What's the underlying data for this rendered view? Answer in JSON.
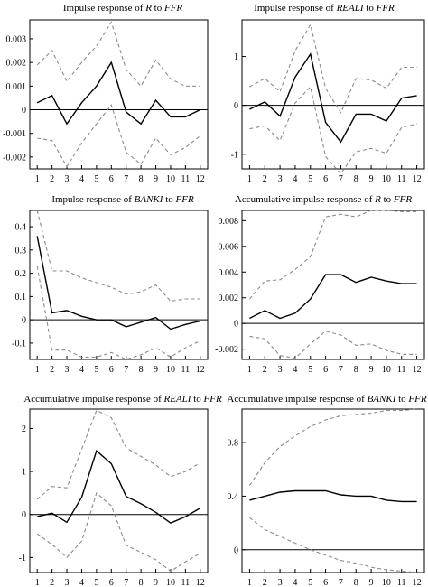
{
  "chart_data": [
    {
      "type": "line",
      "title": {
        "prefix": "Impulse response of ",
        "var": "R",
        "suffix": " to ",
        "target": "FFR"
      },
      "x": [
        1,
        2,
        3,
        4,
        5,
        6,
        7,
        8,
        9,
        10,
        11,
        12
      ],
      "ylim": [
        -0.0025,
        0.0038
      ],
      "yticks": [
        "0.003",
        "0.002",
        "0.001",
        "0",
        "-0.001",
        "-0.002"
      ],
      "ytick_values": [
        0.003,
        0.002,
        0.001,
        0,
        -0.001,
        -0.002
      ],
      "series": [
        {
          "role": "response",
          "values": [
            0.0003,
            0.0006,
            -0.0006,
            0.0003,
            0.001,
            0.002,
            -0.0001,
            -0.0006,
            0.0004,
            -0.0003,
            -0.0003,
            0.0
          ]
        },
        {
          "role": "upper",
          "values": [
            0.0019,
            0.0025,
            0.0012,
            0.002,
            0.0027,
            0.0037,
            0.0017,
            0.001,
            0.0021,
            0.0013,
            0.001,
            0.001
          ]
        },
        {
          "role": "lower",
          "values": [
            -0.0012,
            -0.0013,
            -0.0024,
            -0.0014,
            -0.0006,
            0.0002,
            -0.0018,
            -0.0023,
            -0.0012,
            -0.0019,
            -0.0016,
            -0.0011
          ]
        }
      ]
    },
    {
      "type": "line",
      "title": {
        "prefix": "Impulse response of ",
        "var": "REALI",
        "suffix": " to ",
        "target": "FFR"
      },
      "x": [
        1,
        2,
        3,
        4,
        5,
        6,
        7,
        8,
        9,
        10,
        11,
        12
      ],
      "ylim": [
        -1.3,
        1.75
      ],
      "yticks": [
        "1",
        "0",
        "-1"
      ],
      "ytick_values": [
        1,
        0,
        -1
      ],
      "series": [
        {
          "role": "response",
          "values": [
            -0.08,
            0.07,
            -0.22,
            0.58,
            1.05,
            -0.35,
            -0.75,
            -0.18,
            -0.18,
            -0.32,
            0.15,
            0.2
          ]
        },
        {
          "role": "upper",
          "values": [
            0.38,
            0.55,
            0.28,
            1.12,
            1.65,
            0.35,
            -0.15,
            0.55,
            0.52,
            0.35,
            0.78,
            0.78
          ]
        },
        {
          "role": "lower",
          "values": [
            -0.48,
            -0.42,
            -0.72,
            0.05,
            0.38,
            -1.05,
            -1.4,
            -0.95,
            -0.88,
            -0.98,
            -0.45,
            -0.38
          ]
        }
      ]
    },
    {
      "type": "line",
      "title": {
        "prefix": "Impulse response of ",
        "var": "BANKI",
        "suffix": " to ",
        "target": "FFR"
      },
      "x": [
        1,
        2,
        3,
        4,
        5,
        6,
        7,
        8,
        9,
        10,
        11,
        12
      ],
      "ylim": [
        -0.17,
        0.47
      ],
      "yticks": [
        "0.4",
        "0.3",
        "0.2",
        "0.1",
        "0",
        "-0.1"
      ],
      "ytick_values": [
        0.4,
        0.3,
        0.2,
        0.1,
        0,
        -0.1
      ],
      "series": [
        {
          "role": "response",
          "values": [
            0.36,
            0.03,
            0.04,
            0.015,
            0.0,
            0.0,
            -0.03,
            -0.01,
            0.01,
            -0.04,
            -0.02,
            -0.005
          ]
        },
        {
          "role": "upper",
          "values": [
            0.47,
            0.21,
            0.21,
            0.18,
            0.16,
            0.14,
            0.11,
            0.12,
            0.15,
            0.08,
            0.09,
            0.09
          ]
        },
        {
          "role": "lower",
          "values": [
            0.23,
            -0.13,
            -0.13,
            -0.16,
            -0.16,
            -0.14,
            -0.17,
            -0.15,
            -0.12,
            -0.16,
            -0.12,
            -0.09
          ]
        }
      ]
    },
    {
      "type": "line",
      "title": {
        "prefix": "Accumulative impulse response of ",
        "var": "R",
        "suffix": " to ",
        "target": "FFR"
      },
      "x": [
        1,
        2,
        3,
        4,
        5,
        6,
        7,
        8,
        9,
        10,
        11,
        12
      ],
      "ylim": [
        -0.0028,
        0.0088
      ],
      "yticks": [
        "0.008",
        "0.006",
        "0.004",
        "0.002",
        "0",
        "-0.002"
      ],
      "ytick_values": [
        0.008,
        0.006,
        0.004,
        0.002,
        0,
        -0.002
      ],
      "series": [
        {
          "role": "response",
          "values": [
            0.0004,
            0.001,
            0.0004,
            0.0008,
            0.0019,
            0.0038,
            0.0038,
            0.0032,
            0.0036,
            0.0033,
            0.0031,
            0.0031
          ]
        },
        {
          "role": "upper",
          "values": [
            0.0019,
            0.0033,
            0.0034,
            0.0042,
            0.0052,
            0.0083,
            0.0085,
            0.0083,
            0.0088,
            0.0088,
            0.0087,
            0.0087
          ]
        },
        {
          "role": "lower",
          "values": [
            -0.001,
            -0.0012,
            -0.0025,
            -0.0027,
            -0.0016,
            -0.0006,
            -0.0009,
            -0.0017,
            -0.0016,
            -0.0021,
            -0.0024,
            -0.0024
          ]
        }
      ]
    },
    {
      "type": "line",
      "title": {
        "prefix": "Accumulative impulse response of ",
        "var": "REALI",
        "suffix": " to ",
        "target": "FFR"
      },
      "x": [
        1,
        2,
        3,
        4,
        5,
        6,
        7,
        8,
        9,
        10,
        11,
        12
      ],
      "ylim": [
        -1.35,
        2.45
      ],
      "yticks": [
        "2",
        "1",
        "0",
        "-1"
      ],
      "ytick_values": [
        2,
        1,
        0,
        -1
      ],
      "series": [
        {
          "role": "response",
          "values": [
            -0.05,
            0.03,
            -0.18,
            0.4,
            1.48,
            1.18,
            0.42,
            0.25,
            0.05,
            -0.2,
            -0.05,
            0.15
          ]
        },
        {
          "role": "upper",
          "values": [
            0.35,
            0.65,
            0.62,
            1.52,
            2.42,
            2.25,
            1.55,
            1.35,
            1.15,
            0.88,
            1.0,
            1.2
          ]
        },
        {
          "role": "lower",
          "values": [
            -0.45,
            -0.7,
            -1.0,
            -0.62,
            0.5,
            0.2,
            -0.72,
            -0.88,
            -1.05,
            -1.32,
            -1.1,
            -0.9
          ]
        }
      ]
    },
    {
      "type": "line",
      "title": {
        "prefix": "Accumulative impulse response of ",
        "var": "BANKI",
        "suffix": " to ",
        "target": "FFR"
      },
      "x": [
        1,
        2,
        3,
        4,
        5,
        6,
        7,
        8,
        9,
        10,
        11,
        12
      ],
      "ylim": [
        -0.17,
        1.05
      ],
      "yticks": [
        "0.8",
        "0.4",
        "0"
      ],
      "ytick_values": [
        0.8,
        0.4,
        0
      ],
      "series": [
        {
          "role": "response",
          "values": [
            0.37,
            0.4,
            0.43,
            0.44,
            0.44,
            0.44,
            0.41,
            0.4,
            0.4,
            0.37,
            0.36,
            0.36
          ]
        },
        {
          "role": "upper",
          "values": [
            0.48,
            0.65,
            0.77,
            0.85,
            0.92,
            0.97,
            1.0,
            1.01,
            1.02,
            1.04,
            1.04,
            1.05
          ]
        },
        {
          "role": "lower",
          "values": [
            0.24,
            0.15,
            0.1,
            0.05,
            0.0,
            -0.04,
            -0.08,
            -0.1,
            -0.13,
            -0.15,
            -0.16,
            -0.17
          ]
        }
      ]
    }
  ]
}
